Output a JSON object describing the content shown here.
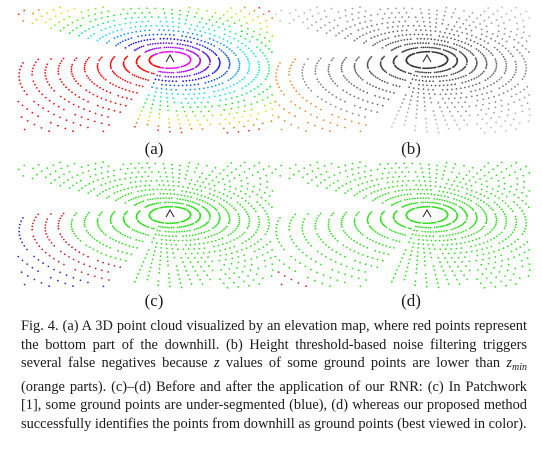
{
  "panels": [
    {
      "id": "a",
      "label": "(a)",
      "scheme": "elevation"
    },
    {
      "id": "b",
      "label": "(b)",
      "scheme": "threshold"
    },
    {
      "id": "c",
      "label": "(c)",
      "scheme": "patchwork"
    },
    {
      "id": "d",
      "label": "(d)",
      "scheme": "rnr"
    }
  ],
  "colors": {
    "ground_green": "#33dd22",
    "undersegmented_blue": "#2233cc",
    "false_negative_orange": "#ee8833",
    "nonground_red": "#cc2222",
    "gray_points": "#555555"
  },
  "caption": {
    "fig": "Fig. 4.",
    "part1": " (a) A 3D point cloud visualized by an elevation map, where red points represent the bottom part of the downhill. (b) Height threshold-based noise filtering triggers several false negatives because ",
    "z_symbol": "z",
    "part2": " values of some ground points are lower than ",
    "zmin_base": "z",
    "zmin_sub": "min",
    "part3": " (orange parts). (c)–(d) Before and after the application of our RNR: (c) In Patchwork [1], some ground points are under-segmented (blue), (d) whereas our proposed method successfully identifies the points from downhill as ground points (best viewed in color)."
  }
}
